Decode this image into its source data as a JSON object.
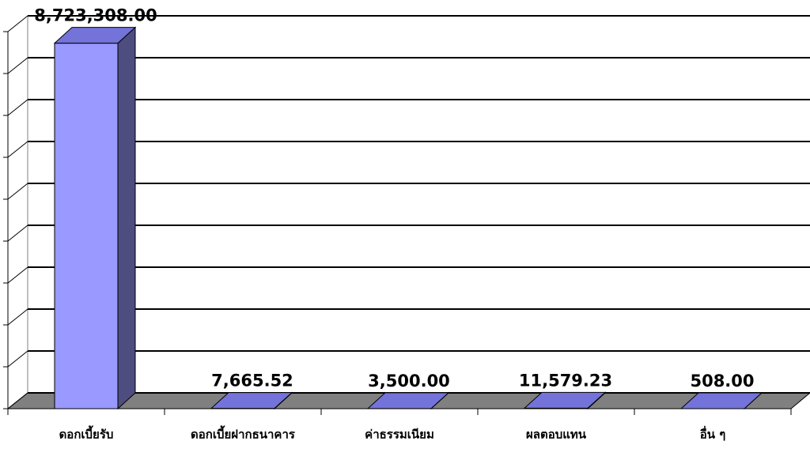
{
  "chart_data": {
    "type": "bar3d",
    "categories": [
      "ดอกเบี้ยรับ",
      "ดอกเบี้ยฝากธนาคาร",
      "ค่าธรรมเนียม",
      "ผลตอบแทน",
      "อื่น ๆ"
    ],
    "values": [
      8723308,
      7665.52,
      3500,
      11579.23,
      508
    ],
    "value_labels": [
      "8,723,308.00",
      "7,665.52",
      "3,500.00",
      "11,579.23",
      "508.00"
    ],
    "color": "#9999ff",
    "ylim": [
      0,
      9000000
    ],
    "yticks": [
      0,
      1000000,
      2000000,
      3000000,
      4000000,
      5000000,
      6000000,
      7000000,
      8000000,
      9000000
    ],
    "grid": true
  }
}
